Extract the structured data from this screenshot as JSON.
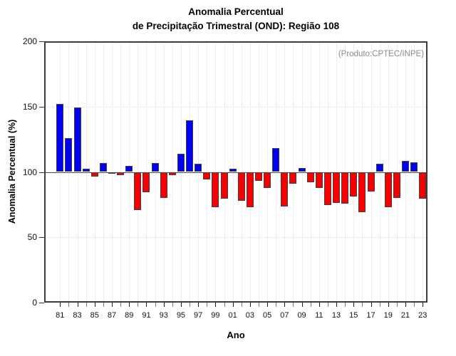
{
  "title": {
    "line1": "Anomalia Percentual",
    "line2": "de Precipitação Trimestral (OND): Região 108"
  },
  "annotation": "(Produto:CPTEC/INPE)",
  "axes": {
    "y_label": "Anomalia Percentual (%)",
    "x_label": "Ano",
    "y_tick_labels": [
      "0",
      "50",
      "100",
      "150",
      "200"
    ],
    "y_tick_values": [
      0,
      50,
      100,
      150,
      200
    ],
    "x_labeled_years": [
      "81",
      "83",
      "85",
      "87",
      "89",
      "91",
      "93",
      "95",
      "97",
      "99",
      "01",
      "03",
      "05",
      "07",
      "09",
      "11",
      "13",
      "15",
      "17",
      "19",
      "21",
      "23"
    ]
  },
  "colors": {
    "above_baseline": "#0000f2",
    "below_baseline": "#f80000",
    "bar_border": "#3f3f3f",
    "frame": "#3c3c3c",
    "grid": "#dcdcdc",
    "baseline": "#4a4a4a",
    "annotation_text": "#8c8c8c",
    "tick_major": "#222222",
    "tick_minor": "#7a7a7a"
  },
  "chart_data": {
    "type": "bar",
    "title": "Anomalia Percentual de Precipitação Trimestral (OND): Região 108",
    "xlabel": "Ano",
    "ylabel": "Anomalia Percentual (%)",
    "ylim": [
      0,
      200
    ],
    "baseline": 100,
    "grid": "dotted",
    "legend": "none",
    "categories": [
      "81",
      "82",
      "83",
      "84",
      "85",
      "86",
      "87",
      "88",
      "89",
      "90",
      "91",
      "92",
      "93",
      "94",
      "95",
      "96",
      "97",
      "98",
      "99",
      "00",
      "01",
      "02",
      "03",
      "04",
      "05",
      "06",
      "07",
      "08",
      "09",
      "10",
      "11",
      "12",
      "13",
      "14",
      "15",
      "16",
      "17",
      "18",
      "19",
      "20",
      "21",
      "22",
      "23"
    ],
    "values": [
      152,
      126,
      149.5,
      102.5,
      96.5,
      107,
      98.5,
      97.5,
      104.5,
      71,
      84.5,
      107,
      80,
      97.5,
      114,
      139.5,
      106,
      94.5,
      73,
      79.5,
      102.5,
      78,
      73,
      93,
      87.5,
      118,
      73.5,
      91,
      103,
      92,
      87.5,
      74.5,
      76.5,
      75.5,
      81,
      69,
      85,
      106.5,
      73,
      80,
      108.5,
      107.5,
      79.5
    ],
    "color_rule": "blue above 100, red below 100"
  }
}
